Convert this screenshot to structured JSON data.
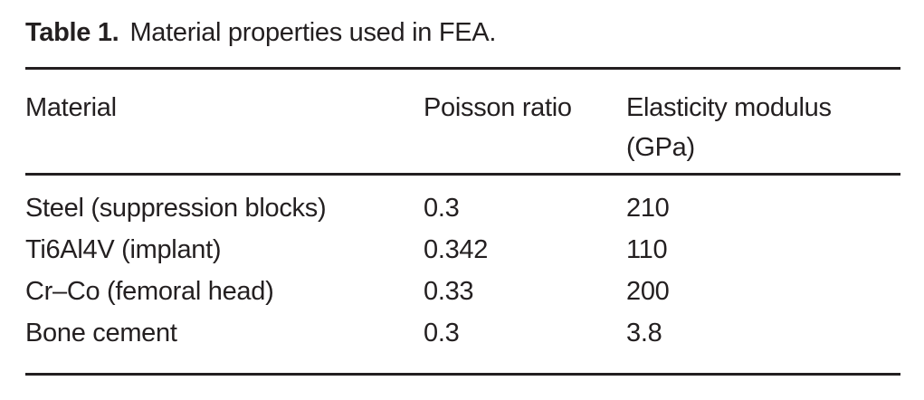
{
  "caption": {
    "label": "Table 1.",
    "text": "Material properties used in FEA."
  },
  "table": {
    "columns": [
      {
        "label": "Material"
      },
      {
        "label": "Poisson ratio"
      },
      {
        "label": "Elasticity modulus",
        "unit": "(GPa)"
      }
    ],
    "rows": [
      {
        "material": "Steel (suppression blocks)",
        "poisson_ratio": "0.3",
        "elasticity_modulus_gpa": "210"
      },
      {
        "material": "Ti6Al4V (implant)",
        "poisson_ratio": "0.342",
        "elasticity_modulus_gpa": "110"
      },
      {
        "material": "Cr–Co (femoral head)",
        "poisson_ratio": "0.33",
        "elasticity_modulus_gpa": "200"
      },
      {
        "material": "Bone cement",
        "poisson_ratio": "0.3",
        "elasticity_modulus_gpa": "3.8"
      }
    ]
  },
  "colors": {
    "text": "#231f20",
    "rule": "#231f20",
    "background": "#ffffff"
  }
}
